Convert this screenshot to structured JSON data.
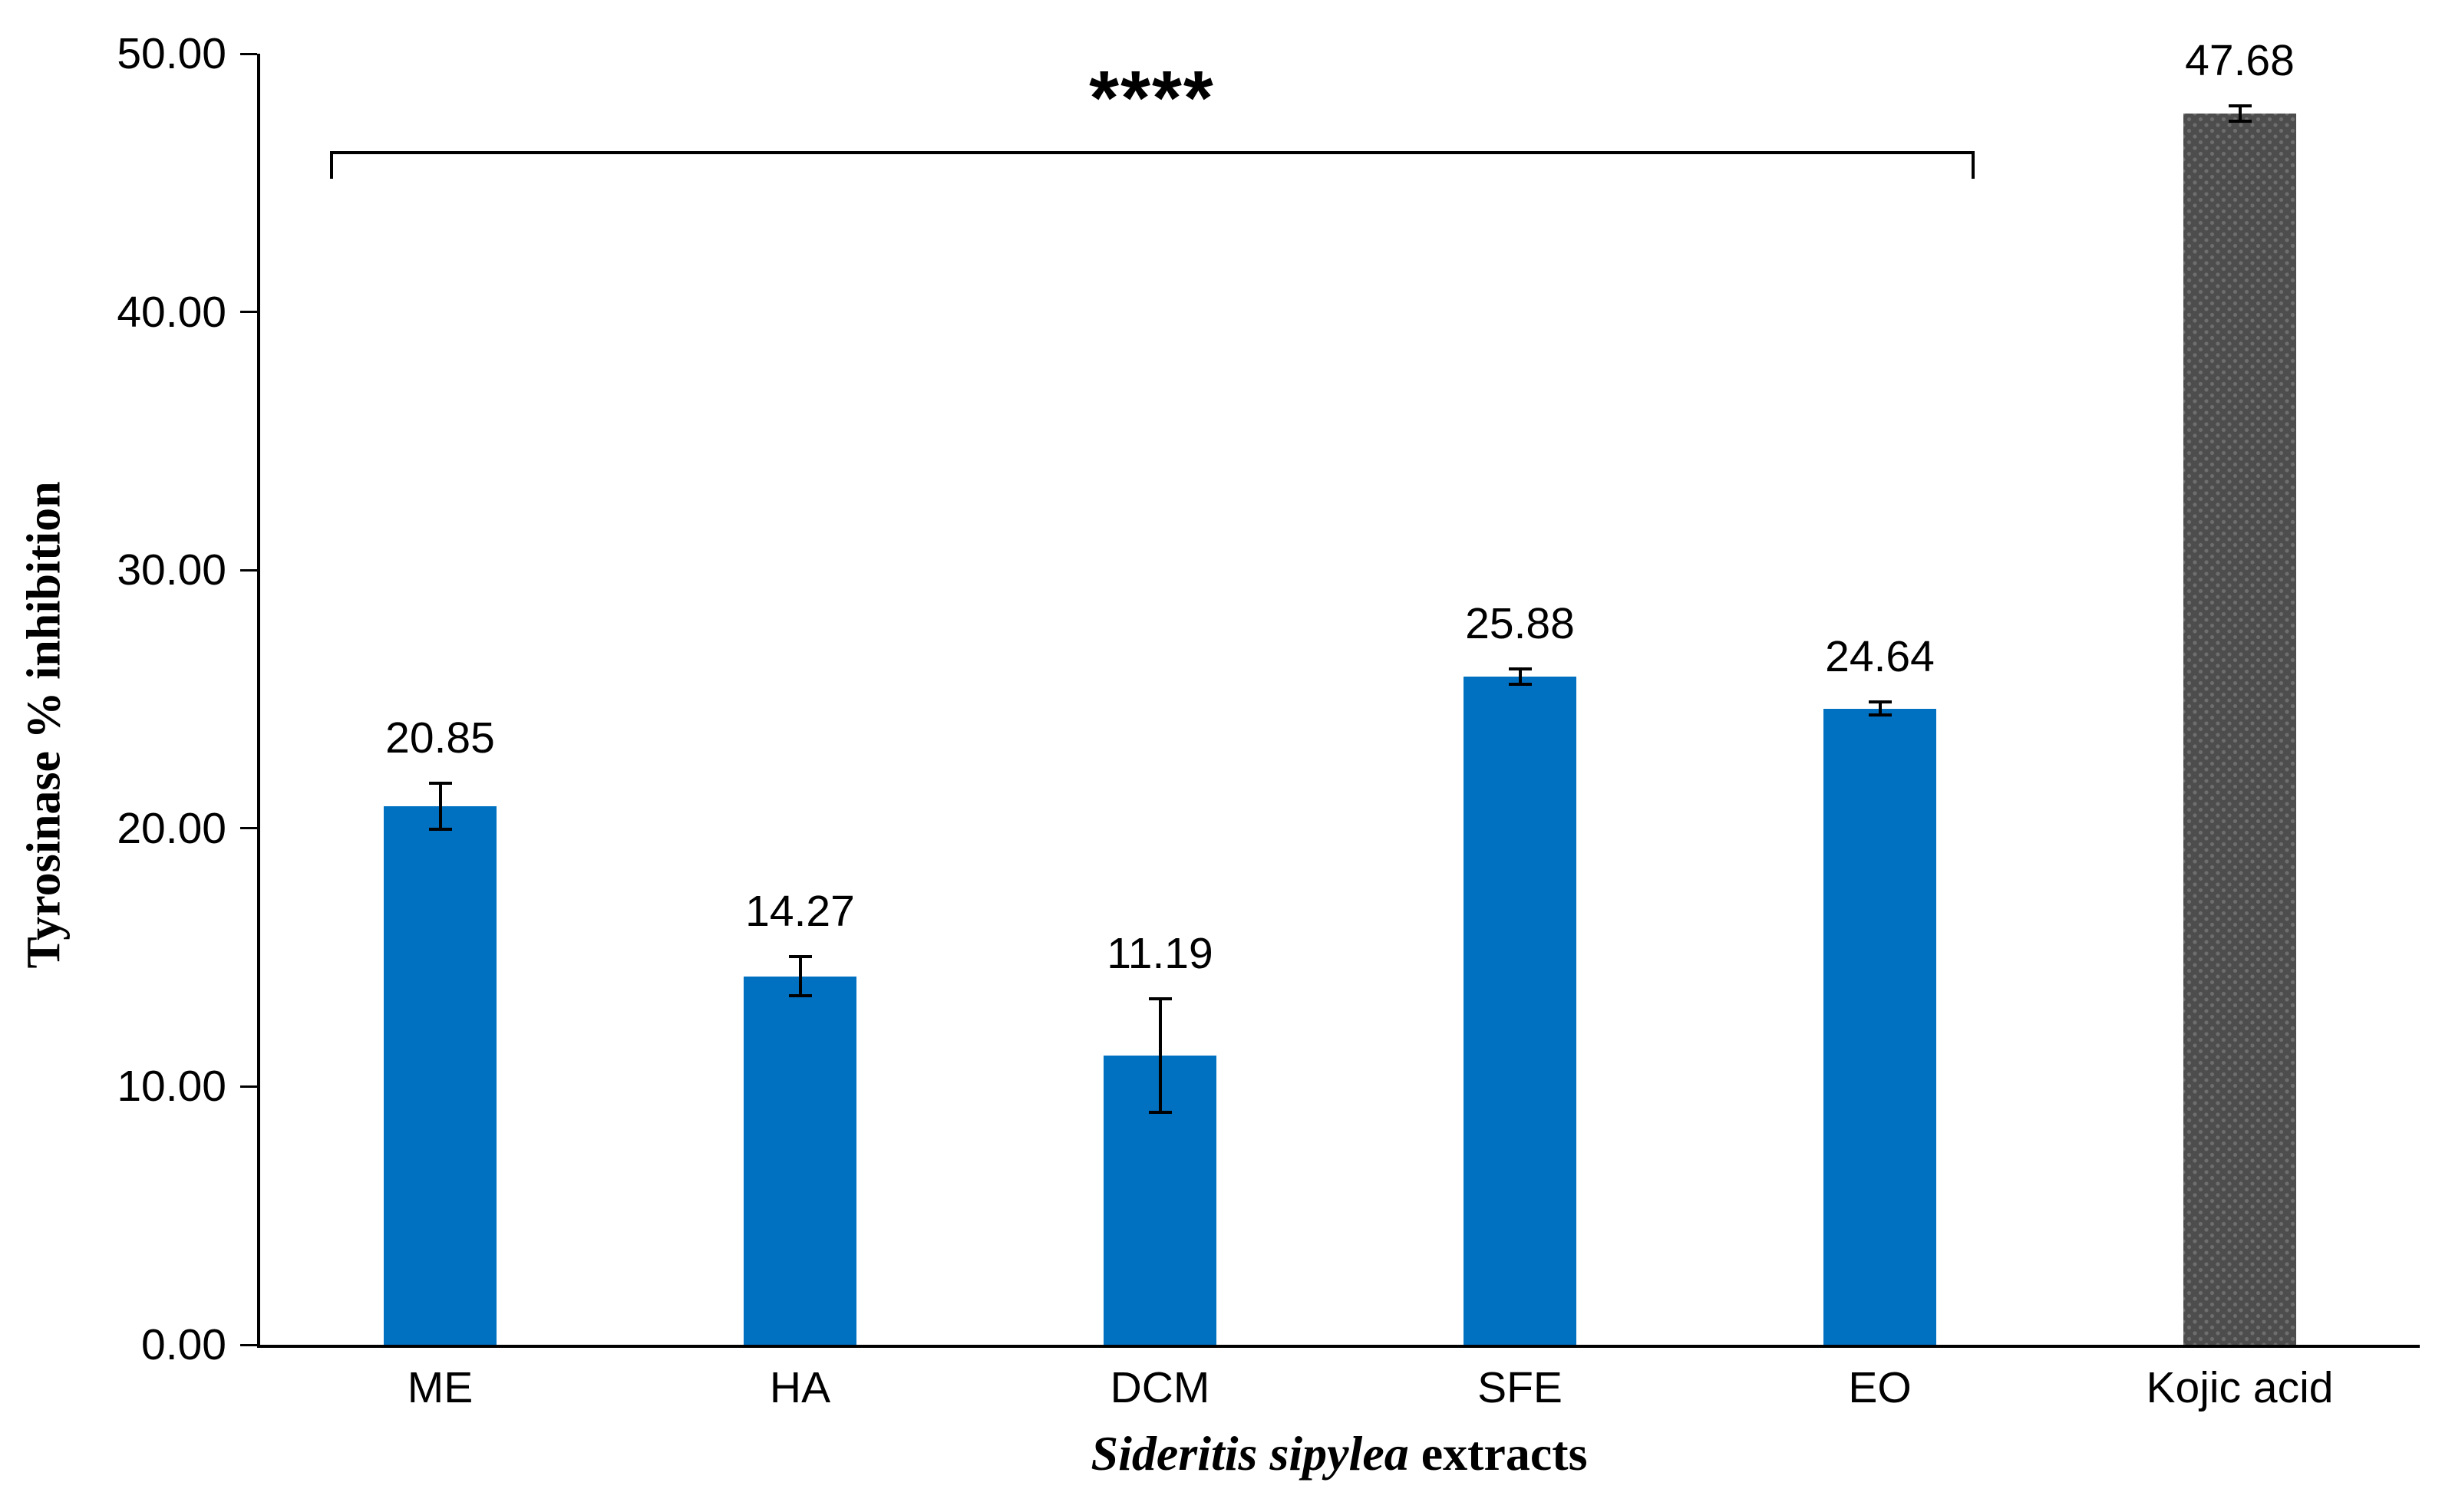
{
  "chart_data": {
    "type": "bar",
    "title": "",
    "ylabel": "Tyrosinase % inhibition",
    "xlabel_species": "Sideritis sipylea",
    "xlabel_rest": " extracts",
    "categories": [
      "ME",
      "HA",
      "DCM",
      "SFE",
      "EO",
      "Kojic acid"
    ],
    "series": [
      {
        "name": "Tyrosinase % inhibition",
        "values": [
          20.85,
          14.27,
          11.19,
          25.88,
          24.64,
          47.68
        ]
      }
    ],
    "value_labels": [
      "20.85",
      "14.27",
      "11.19",
      "25.88",
      "24.64",
      "47.68"
    ],
    "errors": [
      0.9,
      0.75,
      2.2,
      0.3,
      0.25,
      0.3
    ],
    "bar_colors": [
      "#0070C0",
      "#0070C0",
      "#0070C0",
      "#0070C0",
      "#0070C0",
      "#4D4D4D"
    ],
    "bar_pattern": [
      false,
      false,
      false,
      false,
      false,
      true
    ],
    "pattern_dot_color": "#6E6E6E",
    "axis_color": "#000000",
    "ylim": [
      0,
      50
    ],
    "ytick_labels": [
      "0.00",
      "10.00",
      "20.00",
      "30.00",
      "40.00",
      "50.00"
    ],
    "ytick_values": [
      0,
      10,
      20,
      30,
      40,
      50
    ],
    "grid": false,
    "legend": null,
    "significance": {
      "label": "****",
      "from_category": "ME",
      "to_category": "EO"
    }
  }
}
